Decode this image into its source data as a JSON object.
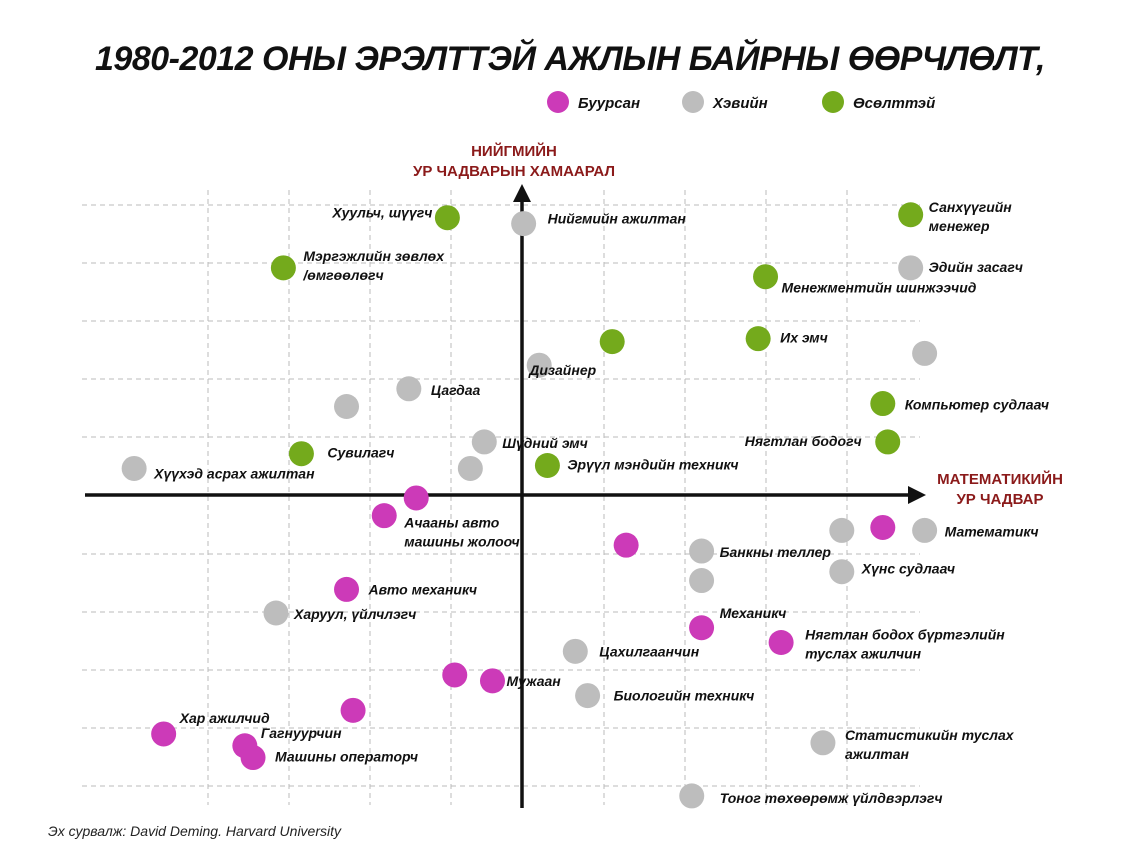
{
  "chart_data": {
    "type": "scatter",
    "title": "1980-2012 ОНЫ ЭРЭЛТТЭЙ АЖЛЫН БАЙРНЫ ӨӨРЧЛӨЛТ,",
    "source": "Эх сурвалж: David Deming. Harvard University",
    "y_axis_title": [
      "НИЙГМИЙН",
      "УР ЧАДВАРЫН ХАМААРАЛ"
    ],
    "x_axis_title": [
      "МАТЕМАТИКИЙН",
      "УР ЧАДВАР"
    ],
    "grid": true,
    "legend_position": "top",
    "colors": {
      "declining": "#cc3ab8",
      "normal": "#bdbdbd",
      "growing": "#74aa1c"
    },
    "series": [
      {
        "key": "declining",
        "name": "Буурсан"
      },
      {
        "key": "normal",
        "name": "Хэвийн"
      },
      {
        "key": "growing",
        "name": "Өсөлттэй"
      }
    ],
    "points": [
      {
        "x": -0.91,
        "y": 0.94,
        "s": "growing",
        "label": [
          "Хуульч, шүүгч"
        ]
      },
      {
        "x": 0.02,
        "y": 0.92,
        "s": "normal",
        "label": [
          "Нийгмийн ажилтан"
        ]
      },
      {
        "x": 4.74,
        "y": 0.95,
        "s": "growing",
        "label": [
          "Санхүүгийн",
          "менежер"
        ]
      },
      {
        "x": -2.91,
        "y": 0.77,
        "s": "growing",
        "label": [
          "Мэргэжлийн зөвлөх",
          "/өмгөөлөгч"
        ]
      },
      {
        "x": 4.74,
        "y": 0.77,
        "s": "normal",
        "label": [
          "Эдийн засагч"
        ]
      },
      {
        "x": 2.97,
        "y": 0.74,
        "s": "growing",
        "label": [
          "Менежментийн шинжээчид"
        ]
      },
      {
        "x": 1.1,
        "y": 0.52,
        "s": "growing",
        "label": []
      },
      {
        "x": 2.88,
        "y": 0.53,
        "s": "growing",
        "label": [
          "Их эмч"
        ]
      },
      {
        "x": 4.91,
        "y": 0.48,
        "s": "normal",
        "label": []
      },
      {
        "x": 0.21,
        "y": 0.44,
        "s": "normal",
        "label": [
          "Дизайнер"
        ]
      },
      {
        "x": -1.38,
        "y": 0.36,
        "s": "normal",
        "label": [
          "Цагдаа"
        ]
      },
      {
        "x": -2.14,
        "y": 0.3,
        "s": "normal",
        "label": []
      },
      {
        "x": 4.4,
        "y": 0.31,
        "s": "growing",
        "label": [
          "Компьютер судлаач"
        ]
      },
      {
        "x": -0.46,
        "y": 0.18,
        "s": "normal",
        "label": [
          "Шүдний эмч"
        ]
      },
      {
        "x": 4.46,
        "y": 0.18,
        "s": "growing",
        "label": [
          "Нягтлан бодогч"
        ]
      },
      {
        "x": -2.69,
        "y": 0.14,
        "s": "growing",
        "label": [
          "Сувилагч"
        ]
      },
      {
        "x": -4.73,
        "y": 0.09,
        "s": "normal",
        "label": [
          "Хүүхэд асрах ажилтан"
        ]
      },
      {
        "x": -0.63,
        "y": 0.09,
        "s": "normal",
        "label": []
      },
      {
        "x": 0.31,
        "y": 0.1,
        "s": "growing",
        "label": [
          "Эрүүл мэндийн техникч"
        ]
      },
      {
        "x": -1.29,
        "y": -0.01,
        "s": "declining",
        "label": []
      },
      {
        "x": -1.68,
        "y": -0.07,
        "s": "declining",
        "label": [
          "Ачааны авто",
          "машины жолооч"
        ]
      },
      {
        "x": 4.4,
        "y": -0.11,
        "s": "declining",
        "label": []
      },
      {
        "x": 3.9,
        "y": -0.12,
        "s": "normal",
        "label": []
      },
      {
        "x": 4.91,
        "y": -0.12,
        "s": "normal",
        "label": [
          "Математикч"
        ]
      },
      {
        "x": 1.27,
        "y": -0.17,
        "s": "declining",
        "label": []
      },
      {
        "x": 2.19,
        "y": -0.19,
        "s": "normal",
        "label": [
          "Банкны теллер"
        ]
      },
      {
        "x": 3.9,
        "y": -0.26,
        "s": "normal",
        "label": [
          "Хүнс судлаач"
        ]
      },
      {
        "x": 2.19,
        "y": -0.29,
        "s": "normal",
        "label": []
      },
      {
        "x": -2.14,
        "y": -0.32,
        "s": "declining",
        "label": [
          "Авто механикч"
        ]
      },
      {
        "x": -3.0,
        "y": -0.4,
        "s": "normal",
        "label": [
          "Харуул, үйлчлэгч"
        ]
      },
      {
        "x": 2.19,
        "y": -0.45,
        "s": "declining",
        "label": [
          "Механикч"
        ]
      },
      {
        "x": 3.16,
        "y": -0.5,
        "s": "declining",
        "label": [
          "Нягтлан бодох бүртгэлийн",
          "туслах ажилчин"
        ]
      },
      {
        "x": 0.65,
        "y": -0.53,
        "s": "normal",
        "label": [
          "Цахилгаанчин"
        ]
      },
      {
        "x": -0.82,
        "y": -0.61,
        "s": "declining",
        "label": []
      },
      {
        "x": -0.36,
        "y": -0.63,
        "s": "declining",
        "label": [
          "Мужаан"
        ]
      },
      {
        "x": 0.8,
        "y": -0.68,
        "s": "normal",
        "label": [
          "Биологийн техникч"
        ]
      },
      {
        "x": -2.06,
        "y": -0.73,
        "s": "declining",
        "label": []
      },
      {
        "x": -4.37,
        "y": -0.81,
        "s": "declining",
        "label": [
          "Хар ажилчид"
        ]
      },
      {
        "x": -3.38,
        "y": -0.85,
        "s": "declining",
        "label": [
          "Гагнуурчин"
        ]
      },
      {
        "x": -3.28,
        "y": -0.89,
        "s": "declining",
        "label": [
          "Машины операторч"
        ]
      },
      {
        "x": 3.67,
        "y": -0.84,
        "s": "normal",
        "label": [
          "Статистикийн туслах",
          "ажилтан"
        ]
      },
      {
        "x": 2.07,
        "y": -1.02,
        "s": "normal",
        "label": [
          "Тоног төхөөрөмж үйлдвэрлэгч"
        ]
      }
    ]
  }
}
